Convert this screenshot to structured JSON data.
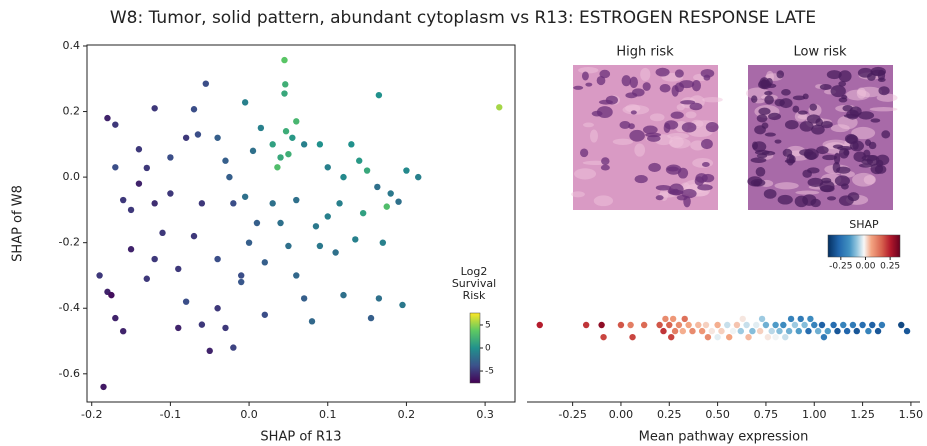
{
  "title": "W8: Tumor, solid pattern, abundant cytoplasm vs R13: ESTROGEN RESPONSE LATE",
  "images": [
    {
      "title": "High risk"
    },
    {
      "title": "Low risk"
    }
  ],
  "chart_data": [
    {
      "type": "scatter",
      "x_label": "SHAP of R13",
      "y_label": "SHAP of W8",
      "xlim": [
        -0.206,
        0.338
      ],
      "ylim": [
        -0.686,
        0.403
      ],
      "xticks": [
        -0.2,
        -0.1,
        {
          "value": 0,
          "label": "0.0"
        },
        0.1,
        0.2,
        0.3
      ],
      "yticks": [
        0.4,
        0.2,
        {
          "value": 0,
          "label": "0.0"
        },
        -0.2,
        -0.4,
        -0.6
      ],
      "x": [
        0.318,
        0.045,
        0.046,
        0.045,
        0.047,
        0.055,
        0.06,
        0.03,
        0.04,
        0.036,
        0.05,
        -0.055,
        -0.12,
        -0.005,
        -0.18,
        -0.17,
        -0.07,
        0.015,
        -0.04,
        -0.14,
        -0.17,
        -0.1,
        -0.08,
        -0.065,
        -0.13,
        -0.03,
        0.07,
        0.09,
        0.1,
        0.13,
        0.165,
        0.15,
        0.14,
        0.2,
        0.215,
        0.18,
        0.163,
        0.175,
        0.19,
        0.145,
        -0.19,
        -0.18,
        -0.175,
        -0.185,
        -0.17,
        -0.16,
        -0.15,
        -0.14,
        -0.12,
        -0.1,
        -0.11,
        -0.12,
        -0.09,
        -0.08,
        -0.06,
        -0.05,
        -0.04,
        -0.03,
        -0.02,
        -0.01,
        0.0,
        0.01,
        0.02,
        0.03,
        0.04,
        0.05,
        0.06,
        0.07,
        0.08,
        0.09,
        0.1,
        0.11,
        0.12,
        0.135,
        0.155,
        0.165,
        0.17,
        -0.09,
        -0.07,
        -0.06,
        -0.04,
        -0.02,
        -0.01,
        0.02,
        0.06,
        0.085,
        0.115,
        -0.15,
        -0.13,
        -0.16,
        0.195,
        0.005,
        -0.025,
        -0.005,
        0.12
      ],
      "y": [
        0.213,
        0.357,
        0.283,
        0.255,
        0.14,
        0.12,
        0.17,
        0.1,
        0.06,
        0.03,
        0.07,
        0.285,
        0.21,
        0.228,
        0.18,
        0.16,
        0.207,
        0.15,
        0.12,
        0.085,
        0.03,
        0.06,
        0.12,
        0.13,
        0.028,
        0.05,
        0.1,
        0.1,
        0.03,
        0.1,
        0.25,
        0.02,
        0.05,
        0.02,
        0.0,
        -0.05,
        -0.03,
        -0.09,
        -0.075,
        -0.11,
        -0.3,
        -0.35,
        -0.36,
        -0.64,
        -0.43,
        -0.07,
        -0.1,
        -0.02,
        -0.08,
        -0.05,
        -0.17,
        -0.25,
        -0.28,
        -0.38,
        -0.45,
        -0.53,
        -0.4,
        -0.46,
        -0.52,
        -0.3,
        -0.2,
        -0.14,
        -0.26,
        -0.08,
        -0.14,
        -0.21,
        -0.3,
        -0.37,
        -0.44,
        -0.21,
        -0.12,
        -0.23,
        -0.36,
        -0.19,
        -0.43,
        -0.37,
        -0.2,
        -0.46,
        -0.18,
        -0.08,
        -0.25,
        -0.08,
        -0.32,
        -0.42,
        -0.07,
        -0.15,
        -0.08,
        -0.22,
        -0.31,
        -0.47,
        -0.39,
        0.08,
        0.0,
        -0.06,
        0.0
      ],
      "color_values": [
        5.5,
        3.5,
        2,
        1.5,
        1.8,
        0.5,
        2.5,
        1,
        1.5,
        3,
        2,
        -4,
        -5,
        -1,
        -6,
        -5,
        -4,
        -1,
        -3,
        -5,
        -4,
        -4,
        -5,
        -4,
        -5,
        -3,
        -1,
        0,
        -1,
        0,
        0,
        1.5,
        0.5,
        -0.5,
        -1,
        -1.5,
        -2,
        3,
        -2,
        1,
        -5,
        -6,
        -7,
        -6.5,
        -6,
        -5,
        -5,
        -6,
        -5.5,
        -5,
        -5,
        -5,
        -5,
        -4,
        -5,
        -6,
        -5,
        -5,
        -4.5,
        -4,
        -3,
        -3,
        -3,
        -2,
        -2,
        -2,
        -2.5,
        -3,
        -2.5,
        -1.5,
        -1,
        -2,
        -2,
        -1,
        -3,
        -2,
        -1,
        -6,
        -5,
        -5,
        -4,
        -4,
        -3.5,
        -4,
        -2,
        -1.5,
        -1,
        -6,
        -5,
        -6,
        -1.5,
        -2,
        -3,
        -2,
        -0.5
      ],
      "colormap": "viridis",
      "colorbar": {
        "title": "Log2 Survival Risk",
        "clim": [
          -7.6,
          7.6
        ],
        "ticks": [
          5,
          0,
          -5
        ]
      }
    },
    {
      "type": "swarm",
      "x_label": "Mean pathway expression",
      "xlim": [
        -0.486,
        1.547
      ],
      "xticks": [
        -0.25,
        {
          "value": 0,
          "label": "0.00"
        },
        0.25,
        {
          "value": 0.5,
          "label": "0.50"
        },
        0.75,
        {
          "value": 1,
          "label": "1.00"
        },
        1.25,
        {
          "value": 1.5,
          "label": "1.50"
        }
      ],
      "values": [
        -0.42,
        -0.18,
        -0.1,
        -0.09,
        0.0,
        0.05,
        0.06,
        0.12,
        0.2,
        0.22,
        0.23,
        0.25,
        0.26,
        0.27,
        0.28,
        0.3,
        0.32,
        0.33,
        0.35,
        0.37,
        0.4,
        0.42,
        0.44,
        0.45,
        0.47,
        0.5,
        0.5,
        0.52,
        0.55,
        0.56,
        0.58,
        0.6,
        0.62,
        0.63,
        0.65,
        0.66,
        0.68,
        0.7,
        0.72,
        0.73,
        0.75,
        0.76,
        0.78,
        0.8,
        0.8,
        0.82,
        0.84,
        0.85,
        0.87,
        0.88,
        0.9,
        0.92,
        0.93,
        0.95,
        0.97,
        0.98,
        1.0,
        1.02,
        1.04,
        1.05,
        1.07,
        1.1,
        1.12,
        1.15,
        1.17,
        1.2,
        1.22,
        1.25,
        1.28,
        1.3,
        1.33,
        1.35,
        1.45,
        1.48
      ],
      "color_values": [
        0.25,
        0.22,
        0.3,
        0.2,
        0.18,
        0.12,
        0.2,
        0.15,
        0.18,
        0.22,
        0.1,
        0.16,
        0.2,
        0.08,
        0.12,
        0.1,
        0.05,
        0.14,
        0.06,
        0.1,
        0.04,
        0.08,
        0.02,
        0.1,
        0.0,
        0.05,
        -0.03,
        0.02,
        -0.05,
        0.06,
        -0.02,
        0.03,
        -0.08,
        0.0,
        -0.05,
        0.04,
        -0.1,
        -0.03,
        0.02,
        -0.08,
        -0.12,
        0.0,
        -0.06,
        -0.15,
        -0.02,
        -0.1,
        -0.18,
        -0.05,
        -0.12,
        -0.2,
        -0.08,
        -0.15,
        -0.22,
        -0.1,
        -0.25,
        -0.18,
        -0.2,
        -0.12,
        -0.28,
        -0.22,
        -0.15,
        -0.25,
        -0.3,
        -0.2,
        -0.27,
        -0.22,
        -0.3,
        -0.25,
        -0.2,
        -0.28,
        -0.3,
        -0.22,
        -0.33,
        -0.3
      ],
      "colormap": "RdBu_r",
      "colorbar": {
        "title": "SHAP",
        "clim": [
          -0.38,
          0.35
        ],
        "ticks": [
          -0.25,
          {
            "value": 0,
            "label": "0.00"
          },
          0.25
        ]
      }
    }
  ]
}
